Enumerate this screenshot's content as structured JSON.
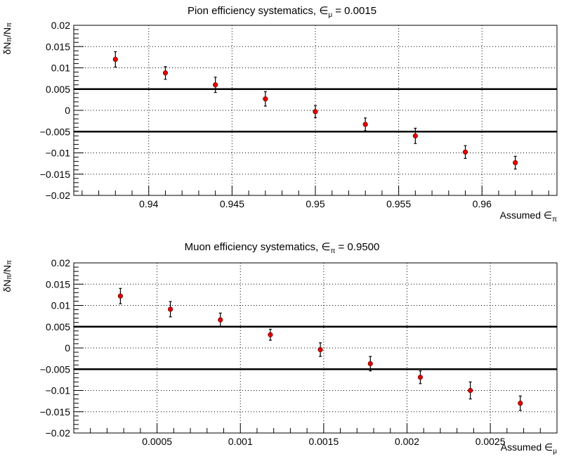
{
  "chart_data": [
    {
      "type": "scatter",
      "title": "Pion efficiency systematics, ∈μ = 0.0015",
      "title_text": "Pion efficiency systematics, ",
      "title_symbol": "∈",
      "title_sub": "μ",
      "title_value": " = 0.0015",
      "xlabel": "Assumed ∈π",
      "xlabel_text": "Assumed ",
      "xlabel_symbol": "∈",
      "xlabel_sub": "π",
      "ylabel": "δNπ/Nπ",
      "xlim": [
        0.9355,
        0.9645
      ],
      "ylim": [
        -0.02,
        0.02
      ],
      "xticks": [
        0.94,
        0.945,
        0.95,
        0.955,
        0.96
      ],
      "xtick_labels": [
        "0.94",
        "0.945",
        "0.95",
        "0.955",
        "0.96"
      ],
      "yticks": [
        -0.02,
        -0.015,
        -0.01,
        -0.005,
        0,
        0.005,
        0.01,
        0.015,
        0.02
      ],
      "ytick_labels": [
        "−0.02",
        "−0.015",
        "−0.01",
        "−0.005",
        "0",
        "0.005",
        "0.01",
        "0.015",
        "0.02"
      ],
      "grid": true,
      "reference_lines": [
        0.005,
        -0.005
      ],
      "marker_color": "#e00000",
      "x": [
        0.938,
        0.941,
        0.944,
        0.947,
        0.95,
        0.953,
        0.956,
        0.959,
        0.962
      ],
      "y": [
        0.012,
        0.0088,
        0.006,
        0.0027,
        -0.0003,
        -0.0033,
        -0.006,
        -0.0098,
        -0.0123
      ],
      "yerr": [
        0.0018,
        0.0015,
        0.0018,
        0.0017,
        0.0014,
        0.0015,
        0.0018,
        0.0015,
        0.0015
      ]
    },
    {
      "type": "scatter",
      "title": "Muon efficiency systematics, ∈π = 0.9500",
      "title_text": "Muon efficiency systematics, ",
      "title_symbol": "∈",
      "title_sub": "π",
      "title_value": " = 0.9500",
      "xlabel": "Assumed ∈μ",
      "xlabel_text": "Assumed ",
      "xlabel_symbol": "∈",
      "xlabel_sub": "μ",
      "ylabel": "δNπ/Nπ",
      "xlim": [
        0.0,
        0.0029
      ],
      "ylim": [
        -0.02,
        0.02
      ],
      "xticks": [
        0.0005,
        0.001,
        0.0015,
        0.002,
        0.0025
      ],
      "xtick_labels": [
        "0.0005",
        "0.001",
        "0.0015",
        "0.002",
        "0.0025"
      ],
      "yticks": [
        -0.02,
        -0.015,
        -0.01,
        -0.005,
        0,
        0.005,
        0.01,
        0.015,
        0.02
      ],
      "ytick_labels": [
        "−0.02",
        "−0.015",
        "−0.01",
        "−0.005",
        "0",
        "0.005",
        "0.01",
        "0.015",
        "0.02"
      ],
      "grid": true,
      "reference_lines": [
        0.005,
        -0.005
      ],
      "marker_color": "#e00000",
      "x": [
        0.00028,
        0.00058,
        0.00088,
        0.00118,
        0.00148,
        0.00178,
        0.00208,
        0.00238,
        0.00268
      ],
      "y": [
        0.0122,
        0.0091,
        0.0066,
        0.0031,
        -0.0004,
        -0.0037,
        -0.0069,
        -0.01,
        -0.013
      ],
      "yerr": [
        0.0018,
        0.0018,
        0.0016,
        0.0013,
        0.0016,
        0.0017,
        0.0015,
        0.002,
        0.0017
      ]
    }
  ]
}
